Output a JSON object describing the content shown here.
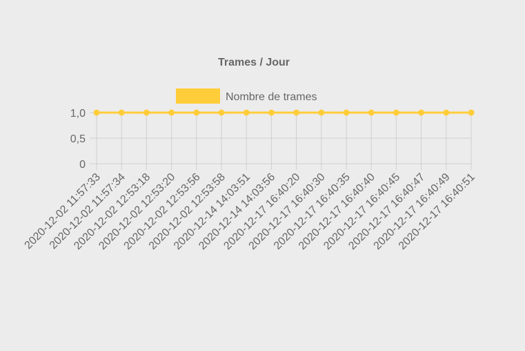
{
  "chart_data": {
    "type": "line",
    "title": "Trames / Jour",
    "categories": [
      "2020-12-02 11:57:33",
      "2020-12-02 11:57:34",
      "2020-12-02 12:53:18",
      "2020-12-02 12:53:20",
      "2020-12-02 12:53:56",
      "2020-12-02 12:53:58",
      "2020-12-14 14:03:51",
      "2020-12-14 14:03:56",
      "2020-12-17 16:40:20",
      "2020-12-17 16:40:30",
      "2020-12-17 16:40:35",
      "2020-12-17 16:40:40",
      "2020-12-17 16:40:45",
      "2020-12-17 16:40:47",
      "2020-12-17 16:40:49",
      "2020-12-17 16:40:51"
    ],
    "series": [
      {
        "name": "Nombre de trames",
        "color": "#ffcd3a",
        "values": [
          1,
          1,
          1,
          1,
          1,
          1,
          1,
          1,
          1,
          1,
          1,
          1,
          1,
          1,
          1,
          1
        ]
      }
    ],
    "y_ticks": [
      "0",
      "0,5",
      "1,0"
    ],
    "ylim": [
      0,
      1
    ],
    "grid": true,
    "legend_position": "top"
  }
}
